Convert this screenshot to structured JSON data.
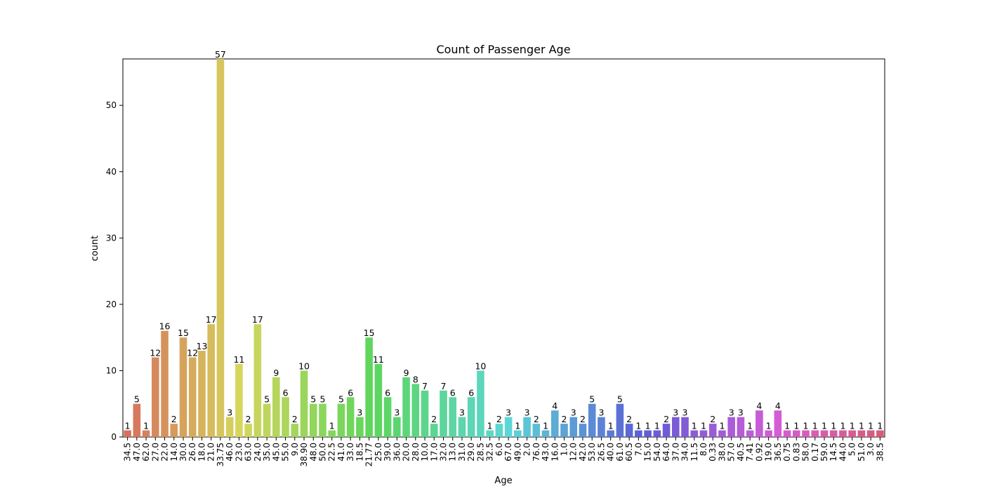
{
  "chart_data": {
    "type": "bar",
    "title": "Count of Passenger Age",
    "xlabel": "Age",
    "ylabel": "count",
    "ylim": [
      0,
      60
    ],
    "yticks": [
      0,
      10,
      20,
      30,
      40,
      50
    ],
    "grid": false,
    "categories": [
      "34.5",
      "47.0",
      "62.0",
      "27.0",
      "22.0",
      "14.0",
      "30.0",
      "26.0",
      "18.0",
      "21.0",
      "33.75",
      "46.0",
      "23.0",
      "63.0",
      "24.0",
      "35.0",
      "45.0",
      "55.0",
      "9.0",
      "38.90",
      "48.0",
      "50.0",
      "22.5",
      "41.0",
      "33.0",
      "18.5",
      "21.77",
      "25.0",
      "39.0",
      "36.0",
      "20.0",
      "28.0",
      "10.0",
      "17.0",
      "32.0",
      "13.0",
      "31.0",
      "29.0",
      "28.5",
      "32.5",
      "6.0",
      "67.0",
      "49.0",
      "2.0",
      "76.0",
      "43.0",
      "16.0",
      "1.0",
      "12.0",
      "42.0",
      "53.0",
      "26.5",
      "40.0",
      "61.0",
      "60.5",
      "7.0",
      "15.0",
      "54.0",
      "64.0",
      "37.0",
      "34.0",
      "11.5",
      "8.0",
      "0.33",
      "38.0",
      "57.0",
      "40.5",
      "7.41",
      "0.92",
      "19.0",
      "36.5",
      "0.75",
      "0.83",
      "58.0",
      "0.17",
      "59.0",
      "14.5",
      "44.0",
      "5.0",
      "51.0",
      "3.0",
      "38.5"
    ],
    "values": [
      1,
      5,
      1,
      12,
      16,
      2,
      15,
      12,
      13,
      17,
      57,
      3,
      11,
      2,
      17,
      5,
      9,
      6,
      2,
      10,
      5,
      5,
      1,
      5,
      6,
      3,
      15,
      11,
      6,
      3,
      9,
      8,
      7,
      2,
      7,
      6,
      3,
      6,
      10,
      1,
      2,
      3,
      1,
      3,
      2,
      1,
      4,
      2,
      3,
      2,
      5,
      3,
      1,
      5,
      2,
      1,
      1,
      1,
      2,
      3,
      3,
      1,
      1,
      2,
      1,
      3,
      3,
      1,
      4,
      1,
      4,
      1,
      1,
      1,
      1,
      1,
      1,
      1,
      1,
      1,
      1,
      1
    ]
  }
}
